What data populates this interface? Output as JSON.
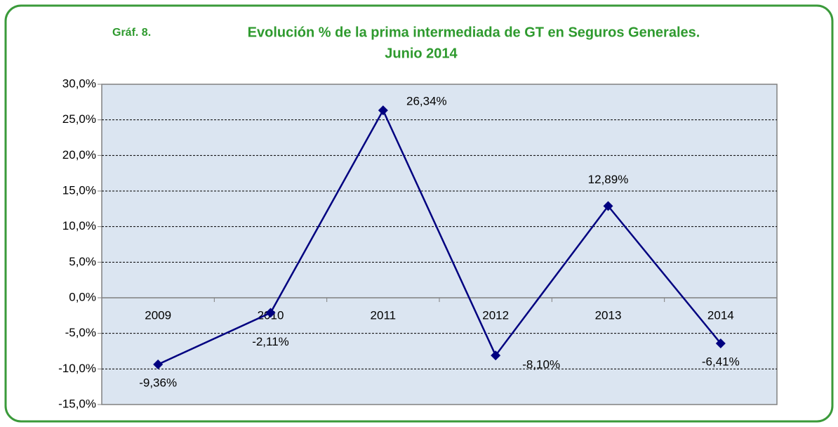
{
  "chart_data": {
    "type": "line",
    "label": "Gráf. 8.",
    "title": "Evolución % de la prima intermediada de GT en Seguros Generales.",
    "subtitle": "Junio 2014",
    "categories": [
      "2009",
      "2010",
      "2011",
      "2012",
      "2013",
      "2014"
    ],
    "series": [
      {
        "color": "#000080",
        "values": [
          -9.36,
          -2.11,
          26.34,
          -8.1,
          12.89,
          -6.41
        ],
        "value_labels": [
          "-9,36%",
          "-2,11%",
          "26,34%",
          "-8,10%",
          "12,89%",
          "-6,41%"
        ]
      }
    ],
    "ylim": [
      -15,
      30
    ],
    "yticks": [
      {
        "value": -15,
        "label": "-15,0%"
      },
      {
        "value": -10,
        "label": "-10,0%"
      },
      {
        "value": -5,
        "label": "-5,0%"
      },
      {
        "value": 0,
        "label": "0,0%"
      },
      {
        "value": 5,
        "label": "5,0%"
      },
      {
        "value": 10,
        "label": "10,0%"
      },
      {
        "value": 15,
        "label": "15,0%"
      },
      {
        "value": 20,
        "label": "20,0%"
      },
      {
        "value": 25,
        "label": "25,0%"
      },
      {
        "value": 30,
        "label": "30,0%"
      }
    ],
    "grid": true
  }
}
